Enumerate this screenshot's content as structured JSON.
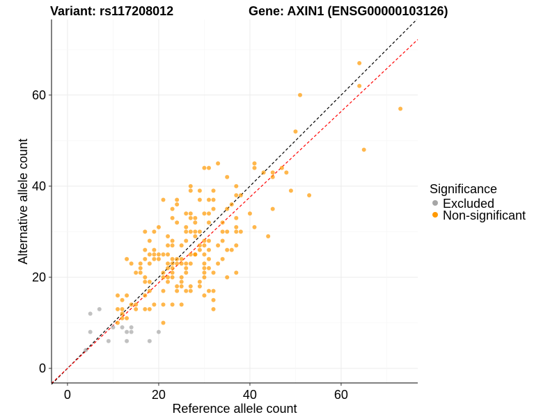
{
  "chart_data": {
    "type": "scatter",
    "title_left": "Variant: rs117208012",
    "title_right": "Gene: AXIN1 (ENSG00000103126)",
    "xlabel": "Reference allele count",
    "ylabel": "Alternative allele count",
    "xlim": [
      -3.5,
      76.8
    ],
    "ylim": [
      -3.2,
      76.6
    ],
    "xticks": [
      0,
      20,
      40,
      60
    ],
    "yticks": [
      0,
      20,
      40,
      60
    ],
    "grid": true,
    "legend": {
      "title": "Significance",
      "position": "right"
    },
    "reference_lines": [
      {
        "name": "identity",
        "slope": 1,
        "intercept": 0,
        "color": "#000000"
      },
      {
        "name": "fit",
        "slope": 0.94,
        "intercept": 0,
        "color": "#FF0000"
      }
    ],
    "series": [
      {
        "name": "Excluded",
        "color": "#A6A6A6",
        "points": [
          [
            5,
            12
          ],
          [
            7,
            13
          ],
          [
            5,
            8
          ],
          [
            9,
            6
          ],
          [
            10,
            9
          ],
          [
            12,
            9
          ],
          [
            13,
            8
          ],
          [
            14,
            8
          ],
          [
            14,
            9
          ],
          [
            13,
            6
          ],
          [
            18,
            6
          ],
          [
            20,
            8
          ],
          [
            4,
            4
          ]
        ]
      },
      {
        "name": "Non-significant",
        "color": "#FF9900",
        "points": [
          [
            11,
            16
          ],
          [
            13,
            16
          ],
          [
            12,
            15
          ],
          [
            11,
            13
          ],
          [
            12,
            13
          ],
          [
            14,
            14
          ],
          [
            15,
            14
          ],
          [
            15,
            13
          ],
          [
            12,
            12
          ],
          [
            12,
            11
          ],
          [
            13,
            11
          ],
          [
            11,
            10
          ],
          [
            17,
            13
          ],
          [
            18,
            13
          ],
          [
            21,
            10
          ],
          [
            17,
            16
          ],
          [
            18,
            17
          ],
          [
            19,
            14
          ],
          [
            21,
            14
          ],
          [
            23,
            14
          ],
          [
            25,
            14
          ],
          [
            21,
            17
          ],
          [
            24,
            17
          ],
          [
            26,
            17
          ],
          [
            27,
            17
          ],
          [
            24,
            18
          ],
          [
            25,
            18
          ],
          [
            27,
            18
          ],
          [
            25,
            19
          ],
          [
            25,
            20
          ],
          [
            22,
            19
          ],
          [
            17,
            19
          ],
          [
            18,
            19
          ],
          [
            17,
            20
          ],
          [
            21,
            20
          ],
          [
            22,
            20
          ],
          [
            23,
            20
          ],
          [
            15,
            21
          ],
          [
            16,
            21
          ],
          [
            16,
            22
          ],
          [
            16,
            23
          ],
          [
            14,
            23
          ],
          [
            13,
            24
          ],
          [
            18,
            23
          ],
          [
            17,
            24
          ],
          [
            17,
            26
          ],
          [
            18,
            25
          ],
          [
            19,
            25
          ],
          [
            19,
            26
          ],
          [
            20,
            25
          ],
          [
            21,
            25
          ],
          [
            22,
            25
          ],
          [
            19,
            24
          ],
          [
            20,
            24
          ],
          [
            18,
            28
          ],
          [
            17,
            30
          ],
          [
            19,
            30
          ],
          [
            20,
            31
          ],
          [
            22,
            29
          ],
          [
            22,
            27
          ],
          [
            23,
            27
          ],
          [
            23,
            28
          ],
          [
            21,
            37
          ],
          [
            24,
            37
          ],
          [
            24,
            36
          ],
          [
            23,
            35
          ],
          [
            23,
            33
          ],
          [
            24,
            32
          ],
          [
            26,
            34
          ],
          [
            27,
            34
          ],
          [
            27,
            33
          ],
          [
            27,
            39
          ],
          [
            26,
            31
          ],
          [
            26,
            30
          ],
          [
            26,
            28
          ],
          [
            27,
            30
          ],
          [
            25,
            27
          ],
          [
            25,
            24
          ],
          [
            24,
            24
          ],
          [
            23,
            24
          ],
          [
            22,
            23
          ],
          [
            23,
            23
          ],
          [
            24,
            23
          ],
          [
            25,
            23
          ],
          [
            26,
            23
          ],
          [
            27,
            23
          ],
          [
            22,
            22
          ],
          [
            23,
            22
          ],
          [
            26,
            22
          ],
          [
            26,
            21
          ],
          [
            23,
            21
          ],
          [
            21,
            21
          ],
          [
            27,
            25
          ],
          [
            28,
            25
          ],
          [
            33,
            45
          ],
          [
            30,
            44
          ],
          [
            31,
            44
          ],
          [
            41,
            45
          ],
          [
            41,
            44
          ],
          [
            35,
            42
          ],
          [
            27,
            40
          ],
          [
            29,
            39
          ],
          [
            32,
            39
          ],
          [
            37,
            40
          ],
          [
            37,
            38
          ],
          [
            38,
            38
          ],
          [
            36,
            36
          ],
          [
            35,
            35
          ],
          [
            29,
            37
          ],
          [
            31,
            37
          ],
          [
            32,
            37
          ],
          [
            32,
            35
          ],
          [
            30,
            34
          ],
          [
            28,
            33
          ],
          [
            28,
            32
          ],
          [
            31,
            34
          ],
          [
            31,
            32
          ],
          [
            34,
            32
          ],
          [
            37,
            33
          ],
          [
            40,
            34
          ],
          [
            37,
            31
          ],
          [
            41,
            31
          ],
          [
            44,
            29
          ],
          [
            38,
            30
          ],
          [
            37,
            30
          ],
          [
            35,
            30
          ],
          [
            34,
            30
          ],
          [
            34,
            28
          ],
          [
            33,
            27
          ],
          [
            35,
            26
          ],
          [
            36,
            26
          ],
          [
            37,
            27
          ],
          [
            31,
            28
          ],
          [
            30,
            28
          ],
          [
            29,
            30
          ],
          [
            28,
            30
          ],
          [
            28,
            29
          ],
          [
            29,
            27
          ],
          [
            30,
            27
          ],
          [
            29,
            26
          ],
          [
            31,
            26
          ],
          [
            28,
            25
          ],
          [
            30,
            25
          ],
          [
            31,
            24
          ],
          [
            34,
            24
          ],
          [
            33,
            23
          ],
          [
            30,
            23
          ],
          [
            30,
            22
          ],
          [
            31,
            22
          ],
          [
            30,
            21
          ],
          [
            32,
            21
          ],
          [
            37,
            21
          ],
          [
            30,
            20
          ],
          [
            35,
            20
          ],
          [
            29,
            19
          ],
          [
            29,
            18
          ],
          [
            31,
            17
          ],
          [
            32,
            17
          ],
          [
            30,
            16
          ],
          [
            32,
            15
          ],
          [
            32,
            13
          ],
          [
            53,
            38
          ],
          [
            49,
            39
          ],
          [
            45,
            35
          ],
          [
            47,
            44
          ],
          [
            48,
            43
          ],
          [
            45,
            43
          ],
          [
            45,
            42
          ],
          [
            43,
            43
          ],
          [
            64,
            67
          ],
          [
            64,
            62
          ],
          [
            51,
            60
          ],
          [
            73,
            57
          ],
          [
            50,
            52
          ],
          [
            65,
            48
          ]
        ]
      }
    ]
  }
}
